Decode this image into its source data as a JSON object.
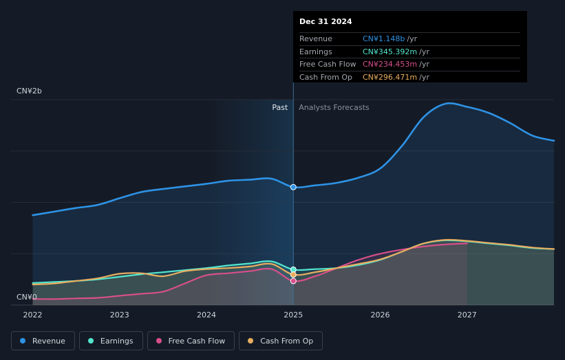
{
  "chart_data": {
    "type": "area",
    "ylabel_top": "CN¥2b",
    "ylabel_bottom": "CN¥0",
    "ylim": [
      0,
      2.0
    ],
    "xlim": [
      2021.75,
      2028.0
    ],
    "x_ticks": [
      "2022",
      "2023",
      "2024",
      "2025",
      "2026",
      "2027"
    ],
    "x_tick_values": [
      2022,
      2023,
      2024,
      2025,
      2026,
      2027
    ],
    "past_label": "Past",
    "forecast_label": "Analysts Forecasts",
    "past_end": 2025.0,
    "series": [
      {
        "name": "Revenue",
        "color": "#2e93e6",
        "points": [
          [
            2022.0,
            0.875
          ],
          [
            2022.25,
            0.91
          ],
          [
            2022.5,
            0.945
          ],
          [
            2022.75,
            0.975
          ],
          [
            2023.0,
            1.04
          ],
          [
            2023.25,
            1.1
          ],
          [
            2023.5,
            1.13
          ],
          [
            2023.75,
            1.155
          ],
          [
            2024.0,
            1.18
          ],
          [
            2024.25,
            1.21
          ],
          [
            2024.5,
            1.22
          ],
          [
            2024.75,
            1.23
          ],
          [
            2025.0,
            1.148
          ],
          [
            2025.25,
            1.165
          ],
          [
            2025.5,
            1.19
          ],
          [
            2025.75,
            1.24
          ],
          [
            2026.0,
            1.33
          ],
          [
            2026.25,
            1.55
          ],
          [
            2026.5,
            1.83
          ],
          [
            2026.75,
            1.96
          ],
          [
            2027.0,
            1.93
          ],
          [
            2027.25,
            1.87
          ],
          [
            2027.5,
            1.77
          ],
          [
            2027.75,
            1.65
          ],
          [
            2028.0,
            1.6
          ]
        ]
      },
      {
        "name": "Earnings",
        "color": "#53e6cf",
        "points": [
          [
            2022.0,
            0.215
          ],
          [
            2022.25,
            0.225
          ],
          [
            2022.5,
            0.235
          ],
          [
            2022.75,
            0.25
          ],
          [
            2023.0,
            0.275
          ],
          [
            2023.25,
            0.3
          ],
          [
            2023.5,
            0.32
          ],
          [
            2023.75,
            0.34
          ],
          [
            2024.0,
            0.36
          ],
          [
            2024.25,
            0.385
          ],
          [
            2024.5,
            0.405
          ],
          [
            2024.75,
            0.425
          ],
          [
            2025.0,
            0.345
          ],
          [
            2025.25,
            0.35
          ],
          [
            2025.5,
            0.36
          ],
          [
            2025.75,
            0.39
          ],
          [
            2026.0,
            0.44
          ],
          [
            2026.25,
            0.52
          ],
          [
            2026.5,
            0.6
          ],
          [
            2026.75,
            0.63
          ],
          [
            2027.0,
            0.62
          ],
          [
            2027.25,
            0.6
          ],
          [
            2027.5,
            0.58
          ],
          [
            2027.75,
            0.555
          ],
          [
            2028.0,
            0.545
          ]
        ]
      },
      {
        "name": "Free Cash Flow",
        "color": "#d74f8a",
        "points": [
          [
            2022.0,
            0.06
          ],
          [
            2022.25,
            0.058
          ],
          [
            2022.5,
            0.065
          ],
          [
            2022.75,
            0.07
          ],
          [
            2023.0,
            0.09
          ],
          [
            2023.25,
            0.11
          ],
          [
            2023.5,
            0.13
          ],
          [
            2023.75,
            0.21
          ],
          [
            2024.0,
            0.29
          ],
          [
            2024.25,
            0.31
          ],
          [
            2024.5,
            0.33
          ],
          [
            2024.75,
            0.35
          ],
          [
            2025.0,
            0.234
          ],
          [
            2025.25,
            0.28
          ],
          [
            2025.5,
            0.36
          ],
          [
            2025.75,
            0.44
          ],
          [
            2026.0,
            0.5
          ],
          [
            2026.25,
            0.54
          ],
          [
            2026.5,
            0.57
          ],
          [
            2026.75,
            0.59
          ],
          [
            2027.0,
            0.6
          ]
        ]
      },
      {
        "name": "Cash From Op",
        "color": "#e8ad60",
        "points": [
          [
            2022.0,
            0.2
          ],
          [
            2022.25,
            0.21
          ],
          [
            2022.5,
            0.235
          ],
          [
            2022.75,
            0.26
          ],
          [
            2023.0,
            0.305
          ],
          [
            2023.25,
            0.31
          ],
          [
            2023.5,
            0.28
          ],
          [
            2023.75,
            0.33
          ],
          [
            2024.0,
            0.35
          ],
          [
            2024.25,
            0.36
          ],
          [
            2024.5,
            0.375
          ],
          [
            2024.75,
            0.4
          ],
          [
            2025.0,
            0.296
          ],
          [
            2025.25,
            0.32
          ],
          [
            2025.5,
            0.36
          ],
          [
            2025.75,
            0.4
          ],
          [
            2026.0,
            0.445
          ],
          [
            2026.25,
            0.52
          ],
          [
            2026.5,
            0.6
          ],
          [
            2026.75,
            0.635
          ],
          [
            2027.0,
            0.625
          ],
          [
            2027.25,
            0.605
          ],
          [
            2027.5,
            0.585
          ],
          [
            2027.75,
            0.56
          ],
          [
            2028.0,
            0.545
          ]
        ]
      }
    ],
    "tooltip": {
      "date": "Dec 31 2024",
      "rows": [
        {
          "label": "Revenue",
          "value": "CN¥1.148b",
          "unit": "/yr",
          "color": "#2e93e6"
        },
        {
          "label": "Earnings",
          "value": "CN¥345.392m",
          "unit": "/yr",
          "color": "#53e6cf"
        },
        {
          "label": "Free Cash Flow",
          "value": "CN¥234.453m",
          "unit": "/yr",
          "color": "#d74f8a"
        },
        {
          "label": "Cash From Op",
          "value": "CN¥296.471m",
          "unit": "/yr",
          "color": "#e8ad60"
        }
      ]
    },
    "legend": [
      {
        "label": "Revenue",
        "color": "#2e93e6"
      },
      {
        "label": "Earnings",
        "color": "#53e6cf"
      },
      {
        "label": "Free Cash Flow",
        "color": "#d74f8a"
      },
      {
        "label": "Cash From Op",
        "color": "#e8ad60"
      }
    ]
  }
}
